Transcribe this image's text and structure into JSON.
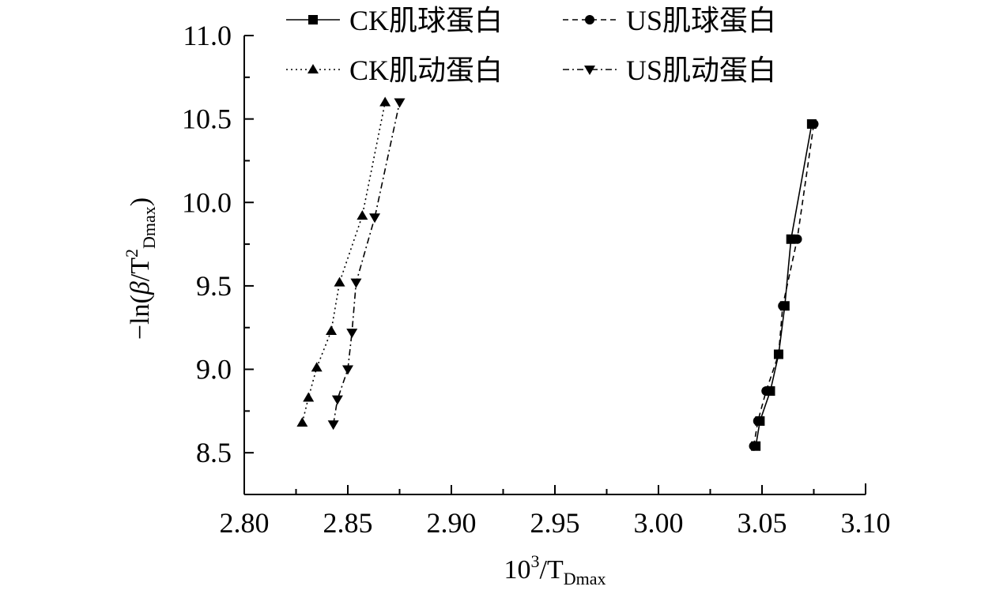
{
  "chart_data": {
    "type": "line",
    "x_axis_label": {
      "base": "10",
      "sup": "3",
      "mid": "/T",
      "sub": "Dmax"
    },
    "y_axis_label": {
      "prefix": "−ln(",
      "beta": "β",
      "mid": "/T",
      "sup": "2",
      "sub": "Dmax",
      "suffix": ")"
    },
    "xlim": [
      2.8,
      3.1
    ],
    "ylim": [
      8.25,
      11.0
    ],
    "x_ticks": [
      "2.80",
      "2.85",
      "2.90",
      "2.95",
      "3.00",
      "3.05",
      "3.10"
    ],
    "y_ticks": [
      "8.5",
      "9.0",
      "9.5",
      "10.0",
      "10.5",
      "11.0"
    ],
    "legend_position": "top",
    "series": [
      {
        "name": "CK肌球蛋白",
        "marker": "square",
        "line": "solid",
        "points": [
          [
            3.047,
            8.54
          ],
          [
            3.049,
            8.69
          ],
          [
            3.054,
            8.87
          ],
          [
            3.058,
            9.09
          ],
          [
            3.061,
            9.38
          ],
          [
            3.064,
            9.78
          ],
          [
            3.074,
            10.47
          ]
        ]
      },
      {
        "name": "US肌球蛋白",
        "marker": "circle",
        "line": "dashed",
        "points": [
          [
            3.046,
            8.54
          ],
          [
            3.048,
            8.69
          ],
          [
            3.052,
            8.87
          ],
          [
            3.058,
            9.09
          ],
          [
            3.06,
            9.38
          ],
          [
            3.067,
            9.78
          ],
          [
            3.075,
            10.47
          ]
        ]
      },
      {
        "name": "CK肌动蛋白",
        "marker": "triangle-up",
        "line": "dotted",
        "points": [
          [
            2.828,
            8.68
          ],
          [
            2.831,
            8.83
          ],
          [
            2.835,
            9.01
          ],
          [
            2.842,
            9.23
          ],
          [
            2.846,
            9.52
          ],
          [
            2.857,
            9.92
          ],
          [
            2.868,
            10.6
          ]
        ]
      },
      {
        "name": "US肌动蛋白",
        "marker": "triangle-down",
        "line": "dashdot",
        "points": [
          [
            2.843,
            8.67
          ],
          [
            2.845,
            8.82
          ],
          [
            2.85,
            9.0
          ],
          [
            2.852,
            9.22
          ],
          [
            2.854,
            9.52
          ],
          [
            2.863,
            9.91
          ],
          [
            2.875,
            10.6
          ]
        ]
      }
    ]
  }
}
